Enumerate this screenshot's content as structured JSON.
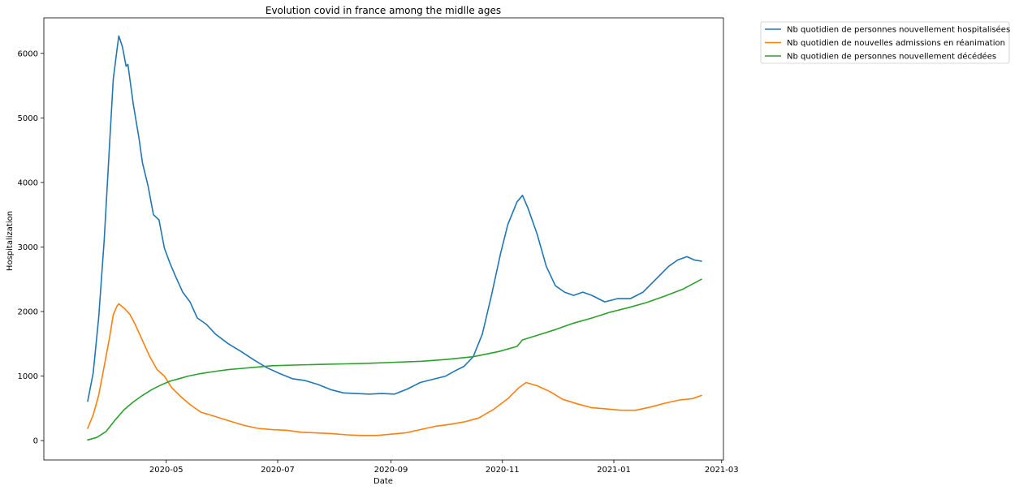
{
  "chart_data": {
    "type": "line",
    "title": "Evolution covid in france among the midlle ages",
    "xlabel": "Date",
    "ylabel": "Hospitalization",
    "xlim": [
      "2020-02-24",
      "2021-03-02"
    ],
    "ylim": [
      -300,
      6550
    ],
    "x_ticks": [
      {
        "date": "2020-05-01",
        "label": "2020-05"
      },
      {
        "date": "2020-07-01",
        "label": "2020-07"
      },
      {
        "date": "2020-09-01",
        "label": "2020-09"
      },
      {
        "date": "2020-11-01",
        "label": "2020-11"
      },
      {
        "date": "2021-01-01",
        "label": "2021-01"
      },
      {
        "date": "2021-03-01",
        "label": "2021-03"
      }
    ],
    "y_ticks": [
      0,
      1000,
      2000,
      3000,
      4000,
      5000,
      6000
    ],
    "grid": false,
    "legend_position": "outside upper right",
    "series": [
      {
        "name": "Nb quotidien de personnes nouvellement hospitalisées",
        "color": "#1f77b4",
        "x": [
          "2020-03-19",
          "2020-03-22",
          "2020-03-25",
          "2020-03-28",
          "2020-03-31",
          "2020-04-02",
          "2020-04-04",
          "2020-04-05",
          "2020-04-07",
          "2020-04-09",
          "2020-04-10",
          "2020-04-13",
          "2020-04-16",
          "2020-04-18",
          "2020-04-21",
          "2020-04-24",
          "2020-04-27",
          "2020-04-30",
          "2020-05-03",
          "2020-05-06",
          "2020-05-10",
          "2020-05-14",
          "2020-05-18",
          "2020-05-23",
          "2020-05-28",
          "2020-06-04",
          "2020-06-11",
          "2020-06-18",
          "2020-06-25",
          "2020-07-02",
          "2020-07-09",
          "2020-07-16",
          "2020-07-23",
          "2020-07-30",
          "2020-08-06",
          "2020-08-13",
          "2020-08-20",
          "2020-08-27",
          "2020-09-03",
          "2020-09-10",
          "2020-09-17",
          "2020-09-24",
          "2020-10-01",
          "2020-10-06",
          "2020-10-11",
          "2020-10-16",
          "2020-10-21",
          "2020-10-26",
          "2020-10-31",
          "2020-11-04",
          "2020-11-09",
          "2020-11-12",
          "2020-11-15",
          "2020-11-20",
          "2020-11-25",
          "2020-11-30",
          "2020-12-05",
          "2020-12-10",
          "2020-12-15",
          "2020-12-20",
          "2020-12-27",
          "2021-01-03",
          "2021-01-10",
          "2021-01-17",
          "2021-01-24",
          "2021-01-31",
          "2021-02-05",
          "2021-02-10",
          "2021-02-14",
          "2021-02-18"
        ],
        "values": [
          610,
          1050,
          1900,
          3100,
          4600,
          5600,
          6050,
          6270,
          6100,
          5800,
          5830,
          5200,
          4700,
          4300,
          3950,
          3500,
          3420,
          2980,
          2750,
          2550,
          2300,
          2150,
          1900,
          1800,
          1650,
          1500,
          1380,
          1250,
          1130,
          1040,
          960,
          930,
          870,
          790,
          740,
          730,
          720,
          730,
          720,
          800,
          900,
          950,
          1000,
          1080,
          1150,
          1300,
          1650,
          2250,
          2900,
          3350,
          3700,
          3800,
          3600,
          3200,
          2700,
          2400,
          2300,
          2250,
          2300,
          2250,
          2150,
          2200,
          2200,
          2300,
          2500,
          2700,
          2800,
          2850,
          2800,
          2780
        ]
      },
      {
        "name": "Nb quotidien de nouvelles admissions en réanimation",
        "color": "#ff7f0e",
        "x": [
          "2020-03-19",
          "2020-03-22",
          "2020-03-25",
          "2020-03-28",
          "2020-03-31",
          "2020-04-02",
          "2020-04-04",
          "2020-04-05",
          "2020-04-08",
          "2020-04-11",
          "2020-04-14",
          "2020-04-18",
          "2020-04-22",
          "2020-04-26",
          "2020-04-30",
          "2020-05-04",
          "2020-05-09",
          "2020-05-14",
          "2020-05-20",
          "2020-05-27",
          "2020-06-04",
          "2020-06-12",
          "2020-06-20",
          "2020-06-28",
          "2020-07-06",
          "2020-07-14",
          "2020-07-22",
          "2020-07-30",
          "2020-08-08",
          "2020-08-16",
          "2020-08-24",
          "2020-09-01",
          "2020-09-09",
          "2020-09-17",
          "2020-09-25",
          "2020-10-03",
          "2020-10-11",
          "2020-10-19",
          "2020-10-27",
          "2020-11-04",
          "2020-11-10",
          "2020-11-14",
          "2020-11-20",
          "2020-11-27",
          "2020-12-04",
          "2020-12-12",
          "2020-12-20",
          "2020-12-28",
          "2021-01-05",
          "2021-01-13",
          "2021-01-21",
          "2021-01-29",
          "2021-02-06",
          "2021-02-13",
          "2021-02-18"
        ],
        "values": [
          190,
          400,
          700,
          1150,
          1600,
          1950,
          2080,
          2120,
          2050,
          1960,
          1800,
          1550,
          1300,
          1100,
          1000,
          820,
          680,
          560,
          440,
          380,
          310,
          240,
          190,
          170,
          160,
          130,
          120,
          110,
          90,
          80,
          80,
          100,
          120,
          170,
          220,
          250,
          290,
          350,
          480,
          650,
          820,
          900,
          850,
          760,
          640,
          570,
          510,
          490,
          470,
          470,
          520,
          580,
          630,
          650,
          700
        ]
      },
      {
        "name": "Nb quotidien de personnes nouvellement décédées",
        "color": "#2ca02c",
        "x": [
          "2020-03-19",
          "2020-03-24",
          "2020-03-29",
          "2020-04-03",
          "2020-04-08",
          "2020-04-13",
          "2020-04-18",
          "2020-04-23",
          "2020-04-28",
          "2020-05-03",
          "2020-05-08",
          "2020-05-13",
          "2020-05-20",
          "2020-05-27",
          "2020-06-04",
          "2020-06-12",
          "2020-06-20",
          "2020-06-28",
          "2020-07-10",
          "2020-07-24",
          "2020-08-07",
          "2020-08-21",
          "2020-09-04",
          "2020-09-18",
          "2020-10-02",
          "2020-10-16",
          "2020-10-30",
          "2020-11-09",
          "2020-11-12",
          "2020-11-20",
          "2020-11-30",
          "2020-12-10",
          "2020-12-20",
          "2020-12-30",
          "2021-01-09",
          "2021-01-19",
          "2021-01-29",
          "2021-02-08",
          "2021-02-18"
        ],
        "values": [
          10,
          50,
          140,
          320,
          480,
          600,
          700,
          790,
          860,
          920,
          960,
          1000,
          1040,
          1070,
          1100,
          1120,
          1140,
          1160,
          1170,
          1180,
          1190,
          1200,
          1215,
          1230,
          1260,
          1300,
          1380,
          1460,
          1560,
          1630,
          1720,
          1820,
          1900,
          1990,
          2060,
          2140,
          2240,
          2350,
          2500
        ]
      }
    ]
  }
}
